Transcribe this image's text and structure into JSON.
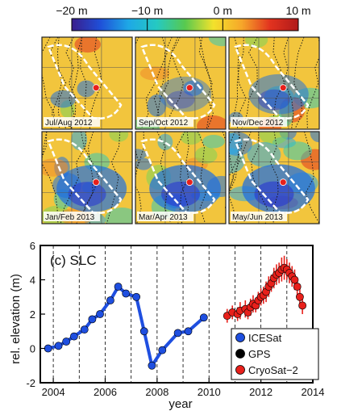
{
  "colorbar": {
    "ticks": [
      "−20 m",
      "−10 m",
      "0 m",
      "10 m"
    ],
    "tick_values": [
      -20,
      -10,
      0,
      10
    ],
    "range": [
      -20,
      10
    ],
    "colors": [
      "#3a1e8c",
      "#1f4fd8",
      "#1ea8e6",
      "#25c9c2",
      "#58c94f",
      "#f3e22c",
      "#f6a72a",
      "#e2331f",
      "#b01a1a"
    ]
  },
  "maps": {
    "panels": [
      {
        "label": "Jul/Aug 2012",
        "cool": 0.0
      },
      {
        "label": "Sep/Oct 2012",
        "cool": 0.15
      },
      {
        "label": "Nov/Dec 2012",
        "cool": 0.4
      },
      {
        "label": "Jan/Feb 2013",
        "cool": 0.75
      },
      {
        "label": "Mar/Apr 2013",
        "cool": 0.8
      },
      {
        "label": "May/Jun 2013",
        "cool": 0.85
      }
    ],
    "base_color": "#f2c53d",
    "marker_color": "#e8201b"
  },
  "chart_data": {
    "type": "scatter",
    "panel_label": "(c) SLC",
    "xlabel": "year",
    "ylabel": "rel. elevation (m)",
    "xlim": [
      2003.5,
      2014
    ],
    "ylim": [
      -2,
      6
    ],
    "x_ticks": [
      2004,
      2006,
      2008,
      2010,
      2012,
      2014
    ],
    "y_ticks": [
      -2,
      0,
      2,
      4,
      6
    ],
    "vertical_gridlines": [
      2004,
      2005,
      2006,
      2007,
      2008,
      2009,
      2010,
      2011,
      2012,
      2013
    ],
    "legend_position": "bottom-right",
    "series": [
      {
        "name": "ICESat",
        "color": "#1f4fe0",
        "connected": true,
        "x": [
          2003.8,
          2004.2,
          2004.5,
          2004.8,
          2005.2,
          2005.5,
          2005.8,
          2006.2,
          2006.5,
          2006.8,
          2007.2,
          2007.5,
          2007.8,
          2008.2,
          2008.8,
          2009.2,
          2009.8
        ],
        "y": [
          0.0,
          0.15,
          0.4,
          0.7,
          1.1,
          1.7,
          2.0,
          2.8,
          3.6,
          3.2,
          3.0,
          1.0,
          -1.0,
          -0.1,
          0.9,
          1.0,
          1.8
        ]
      },
      {
        "name": "GPS",
        "color": "#000000",
        "connected": false,
        "x": [],
        "y": []
      },
      {
        "name": "CryoSat−2",
        "color": "#e8201b",
        "connected": false,
        "x": [
          2010.7,
          2010.9,
          2011.1,
          2011.2,
          2011.4,
          2011.5,
          2011.6,
          2011.7,
          2011.8,
          2011.9,
          2012.0,
          2012.1,
          2012.2,
          2012.3,
          2012.4,
          2012.5,
          2012.6,
          2012.7,
          2012.8,
          2012.9,
          2013.0,
          2013.1,
          2013.2,
          2013.3,
          2013.4,
          2013.5,
          2013.6
        ],
        "y": [
          1.9,
          2.1,
          2.0,
          2.2,
          2.3,
          2.1,
          2.4,
          2.6,
          2.5,
          2.8,
          3.0,
          3.1,
          3.3,
          3.6,
          3.8,
          4.1,
          4.3,
          4.4,
          4.6,
          4.7,
          4.6,
          4.4,
          4.2,
          4.0,
          3.6,
          3.0,
          2.5
        ],
        "err": [
          0.4,
          0.4,
          0.4,
          0.5,
          0.5,
          0.4,
          0.5,
          0.5,
          0.4,
          0.5,
          0.5,
          0.5,
          0.6,
          0.6,
          0.5,
          0.6,
          0.6,
          0.6,
          0.7,
          0.7,
          0.6,
          0.6,
          0.6,
          0.6,
          0.5,
          0.5,
          0.5
        ]
      }
    ]
  }
}
